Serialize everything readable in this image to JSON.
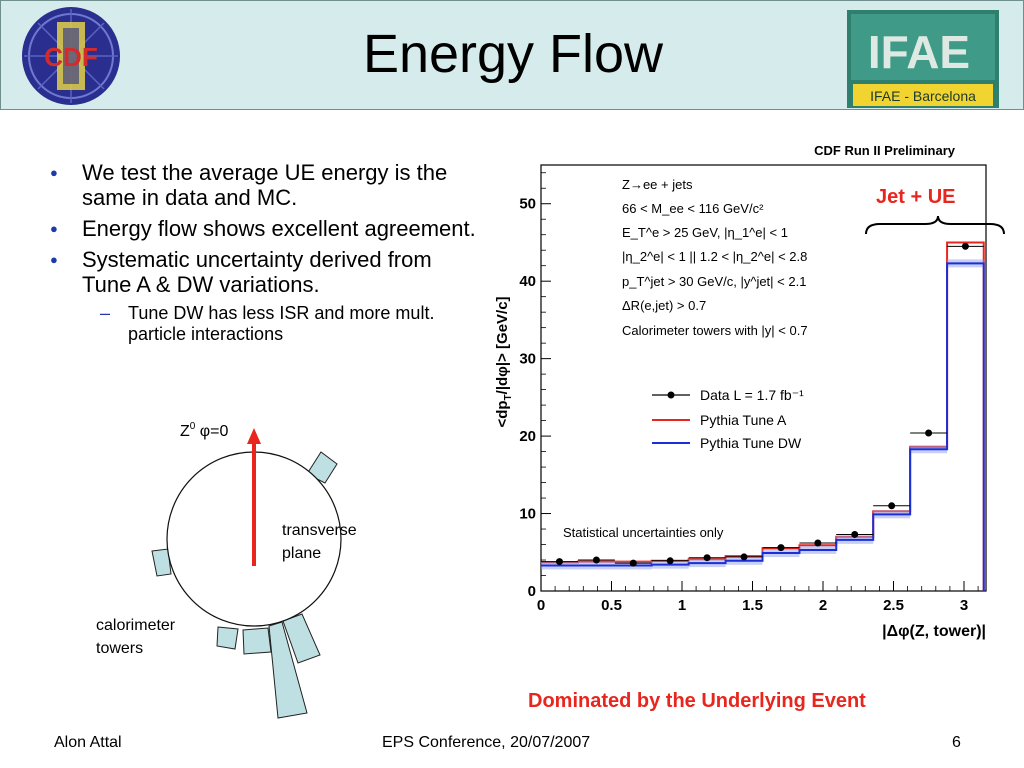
{
  "slide": {
    "title": "Energy Flow",
    "logo_right_caption": "IFAE - Barcelona",
    "logo_left_text": "CDF",
    "logo_right_text": "IFAE",
    "bullets": [
      "We test the average UE energy is the same in data and MC.",
      "Energy flow shows excellent agreement.",
      "Systematic uncertainty derived from Tune A & DW variations."
    ],
    "subbullet": "Tune DW has less ISR and more mult. particle interactions",
    "footer_left": "Alon Attal",
    "footer_center": "EPS Conference, 20/07/2007",
    "footer_right": "6",
    "annotation_top": "Jet + UE",
    "annotation_bottom": "Dominated by the Underlying Event",
    "colors": {
      "accent_red": "#e8261d",
      "bullet_blue": "#1f3aa8",
      "tower_fill": "#bfe0e3",
      "header_bg": "#d6ecec"
    }
  },
  "diagram": {
    "z_label": "Z",
    "z_sup": "0",
    "phi_label": "φ=0",
    "plane_label_1": "transverse",
    "plane_label_2": "plane",
    "towers_label_1": "calorimeter",
    "towers_label_2": "towers"
  },
  "chart_data": {
    "type": "line",
    "header": "CDF Run II Preliminary",
    "xlabel": "|Δφ(Z, tower)|",
    "ylabel": "<dp_T/|dφ|>  [GeV/c]",
    "xlim": [
      0,
      3.14
    ],
    "ylim": [
      0,
      55
    ],
    "xticks": [
      "0",
      "0.5",
      "1",
      "1.5",
      "2",
      "2.5",
      "3"
    ],
    "xtick_values": [
      0,
      0.5,
      1,
      1.5,
      2,
      2.5,
      3
    ],
    "yticks": [
      "0",
      "10",
      "20",
      "30",
      "40",
      "50"
    ],
    "ytick_values": [
      0,
      10,
      20,
      30,
      40,
      50
    ],
    "bin_edges": [
      0,
      0.262,
      0.524,
      0.785,
      1.047,
      1.309,
      1.571,
      1.833,
      2.094,
      2.356,
      2.618,
      2.88,
      3.14
    ],
    "series": [
      {
        "name": "Data  L = 1.7 fb⁻¹",
        "kind": "points",
        "color": "#000000",
        "values": [
          3.8,
          4.0,
          3.6,
          3.9,
          4.3,
          4.4,
          5.6,
          6.2,
          7.3,
          11.0,
          20.4,
          44.5
        ]
      },
      {
        "name": "Pythia Tune A",
        "kind": "step",
        "color": "#e8261d",
        "values": [
          3.7,
          3.8,
          3.8,
          3.9,
          4.1,
          4.5,
          5.5,
          5.9,
          7.0,
          10.3,
          18.6,
          45.0
        ]
      },
      {
        "name": "Pythia Tune DW",
        "kind": "step",
        "color": "#1c2fd6",
        "values": [
          3.3,
          3.3,
          3.3,
          3.4,
          3.6,
          3.9,
          4.9,
          5.3,
          6.6,
          9.9,
          18.3,
          42.3
        ]
      }
    ],
    "legend_position": "center",
    "cuts": [
      "Z→ee + jets",
      "66 < M_ee < 116 GeV/c²",
      "E_T^e > 25 GeV, |η_1^e| < 1",
      "|η_2^e| < 1  ||  1.2 < |η_2^e| < 2.8",
      "p_T^jet > 30 GeV/c, |y^jet| < 2.1",
      "ΔR(e,jet) > 0.7",
      "Calorimeter towers with |y| < 0.7"
    ],
    "note": "Statistical uncertainties only",
    "grid": false
  }
}
